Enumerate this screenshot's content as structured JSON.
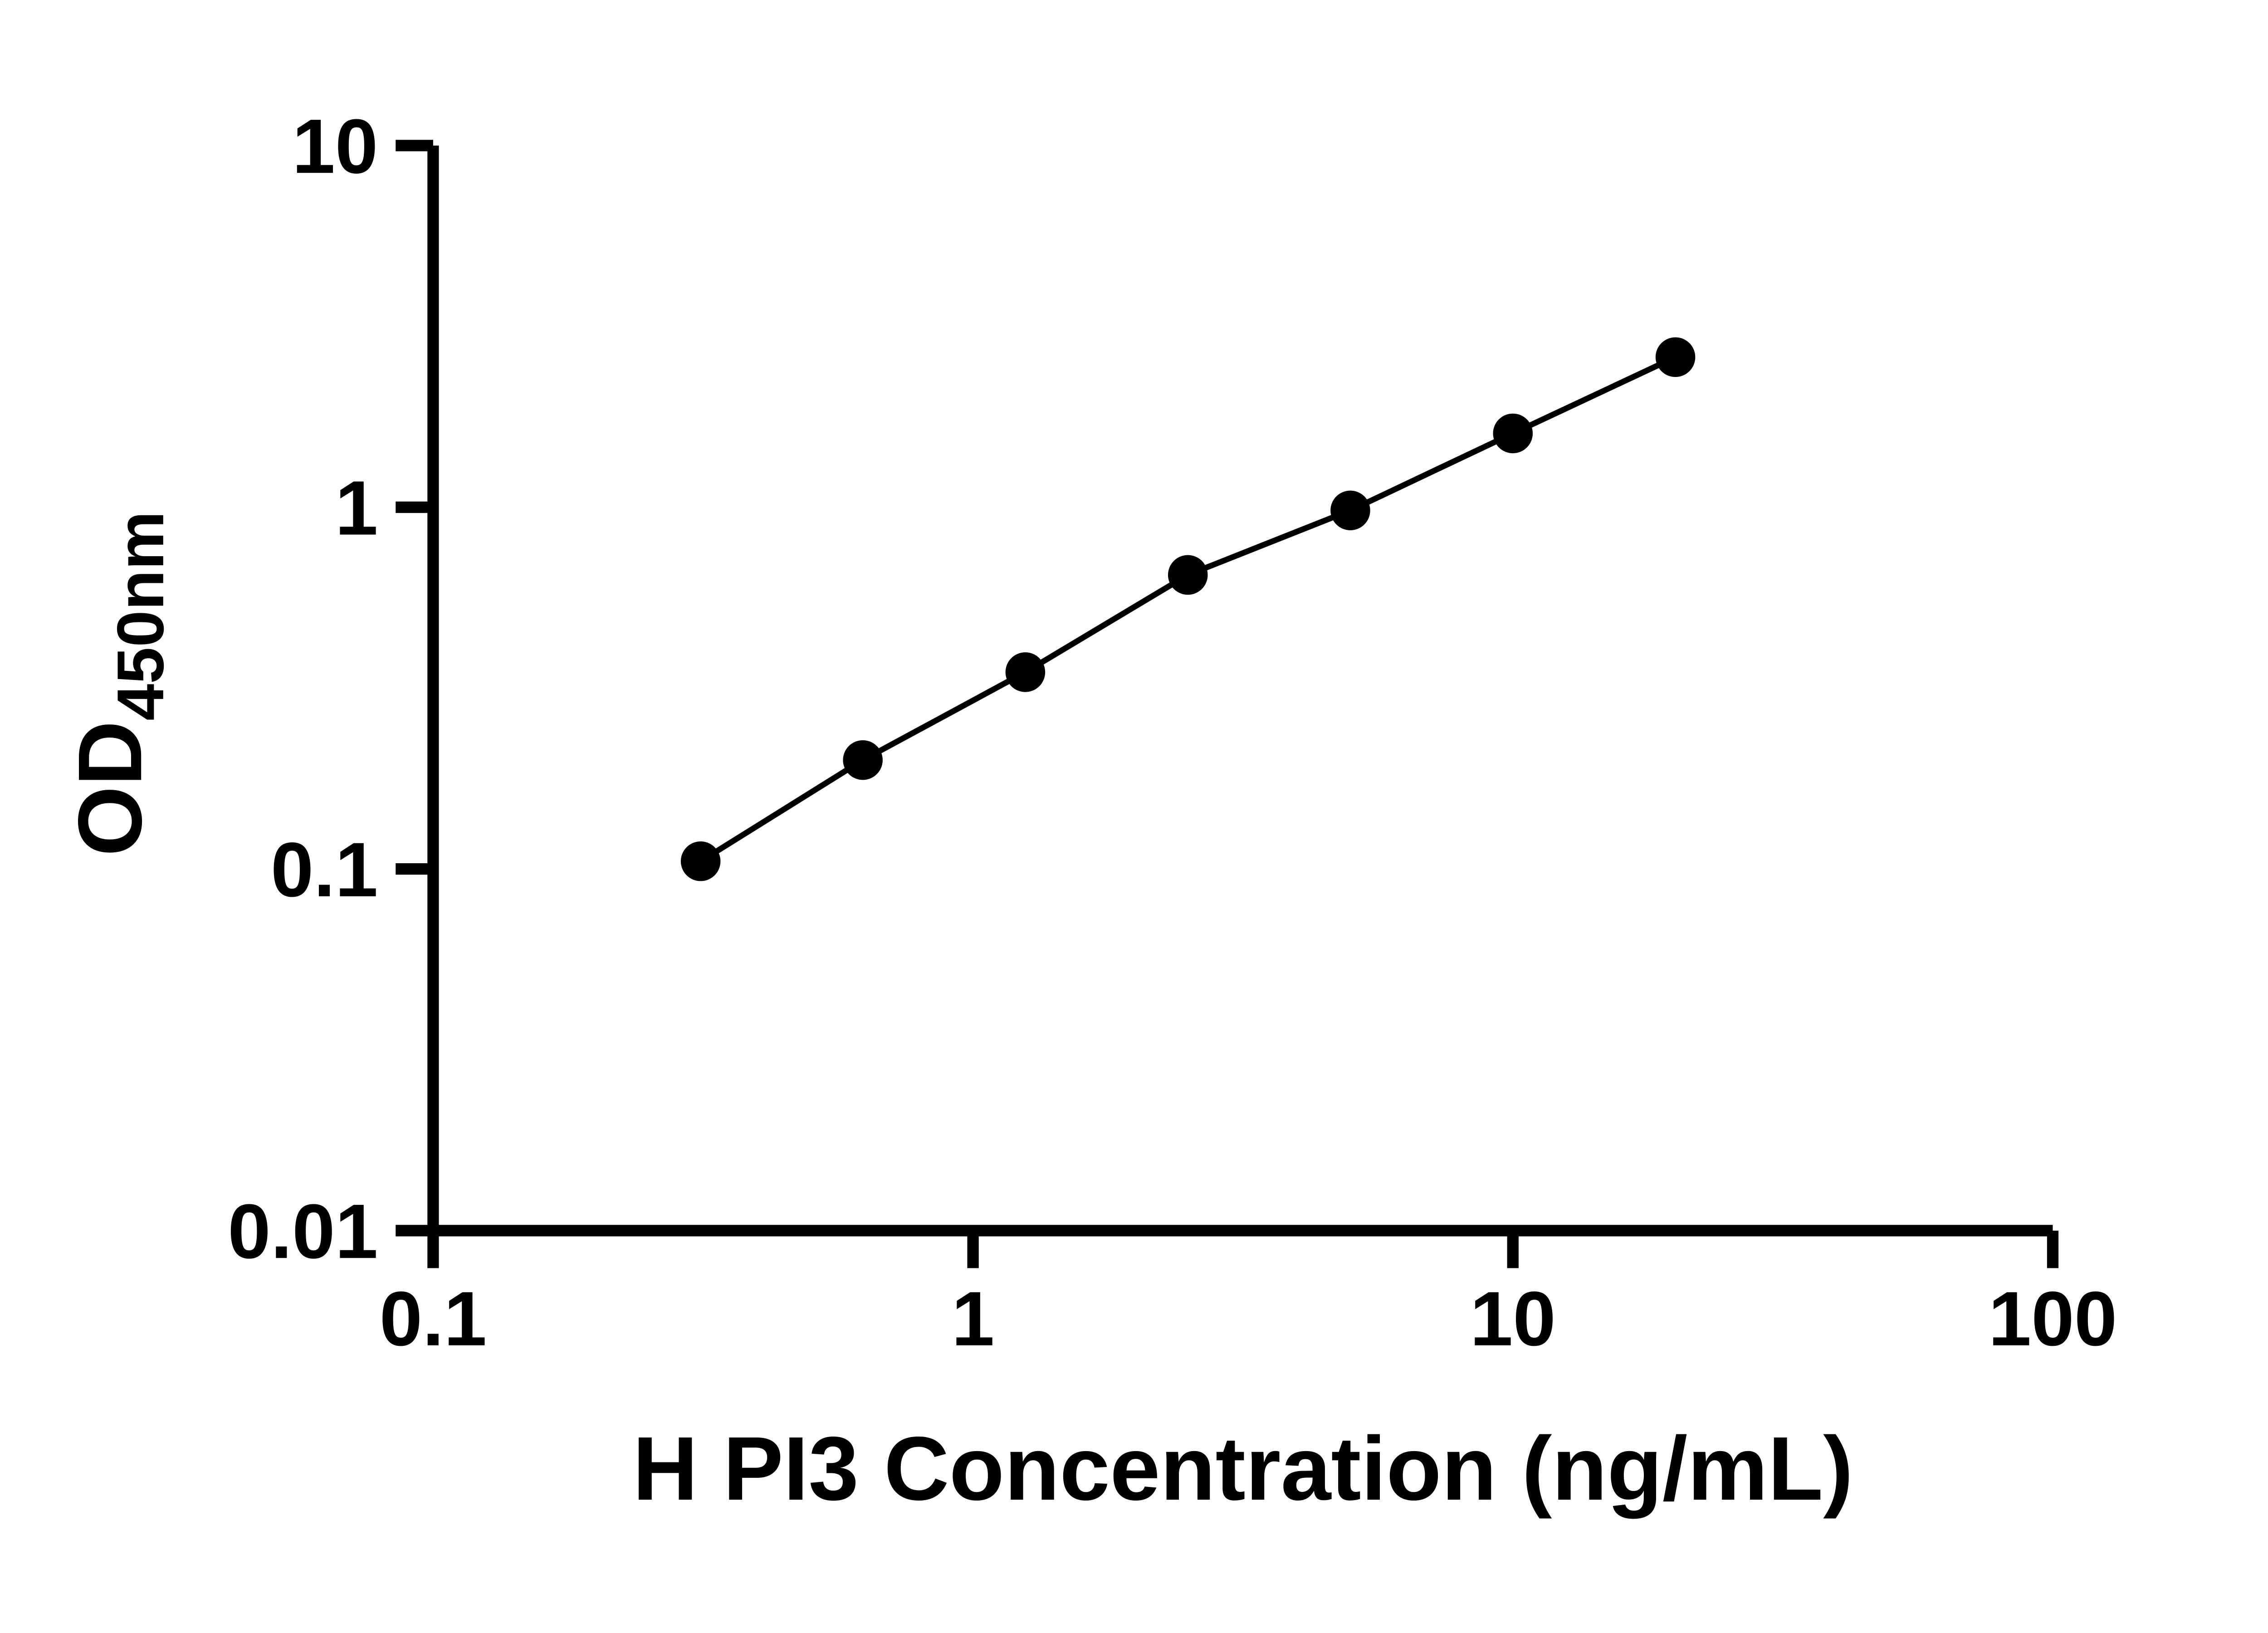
{
  "chart_data": {
    "type": "scatter",
    "title": "",
    "xlabel": "H PI3 Concentration (ng/mL)",
    "ylabel_main": "OD",
    "ylabel_sub": "450nm",
    "x_scale": "log",
    "y_scale": "log",
    "xlim": [
      0.1,
      100
    ],
    "ylim": [
      0.01,
      10
    ],
    "x_ticks": [
      0.1,
      1,
      10,
      100
    ],
    "x_tick_labels": [
      "0.1",
      "1",
      "10",
      "100"
    ],
    "y_ticks": [
      0.01,
      0.1,
      1,
      10
    ],
    "y_tick_labels": [
      "0.01",
      "0.1",
      "1",
      "10"
    ],
    "grid": false,
    "legend": "none",
    "series": [
      {
        "marker": "circle",
        "marker_color": "#000000",
        "line_color": "#000000",
        "connected": true,
        "points": [
          {
            "x": 0.313,
            "y": 0.105
          },
          {
            "x": 0.625,
            "y": 0.2
          },
          {
            "x": 1.25,
            "y": 0.35
          },
          {
            "x": 2.5,
            "y": 0.65
          },
          {
            "x": 5,
            "y": 0.98
          },
          {
            "x": 10,
            "y": 1.6
          },
          {
            "x": 20,
            "y": 2.6
          }
        ]
      }
    ]
  },
  "colors": {
    "axis": "#000000",
    "background": "#ffffff"
  }
}
